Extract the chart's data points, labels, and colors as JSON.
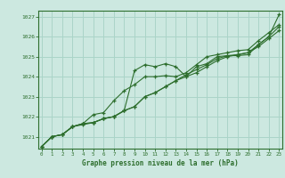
{
  "title": "Graphe pression niveau de la mer (hPa)",
  "bg_color": "#cce8e0",
  "grid_color": "#aad4c8",
  "line_color": "#2d6e2d",
  "xlim": [
    -0.3,
    23.3
  ],
  "ylim": [
    1020.4,
    1027.3
  ],
  "yticks": [
    1021,
    1022,
    1023,
    1024,
    1025,
    1026,
    1027
  ],
  "xticks": [
    0,
    1,
    2,
    3,
    4,
    5,
    6,
    7,
    8,
    9,
    10,
    11,
    12,
    13,
    14,
    15,
    16,
    17,
    18,
    19,
    20,
    21,
    22,
    23
  ],
  "series": [
    [
      1020.5,
      1021.0,
      1021.1,
      1021.5,
      1021.6,
      1021.7,
      1021.9,
      1022.0,
      1022.3,
      1024.3,
      1024.6,
      1024.5,
      1024.65,
      1024.5,
      1024.0,
      1024.5,
      1024.65,
      1025.0,
      1025.05,
      1025.05,
      1025.1,
      1025.6,
      1026.0,
      1027.1
    ],
    [
      1020.5,
      1021.0,
      1021.1,
      1021.5,
      1021.65,
      1022.1,
      1022.2,
      1022.8,
      1023.3,
      1023.6,
      1024.0,
      1024.0,
      1024.05,
      1024.0,
      1024.2,
      1024.6,
      1025.0,
      1025.1,
      1025.2,
      1025.3,
      1025.35,
      1025.8,
      1026.2,
      1026.6
    ],
    [
      1020.5,
      1021.0,
      1021.1,
      1021.5,
      1021.65,
      1021.7,
      1021.9,
      1022.0,
      1022.3,
      1022.5,
      1023.0,
      1023.2,
      1023.5,
      1023.8,
      1024.1,
      1024.35,
      1024.6,
      1024.9,
      1025.05,
      1025.1,
      1025.2,
      1025.6,
      1026.0,
      1026.5
    ],
    [
      1020.5,
      1021.0,
      1021.1,
      1021.5,
      1021.65,
      1021.7,
      1021.9,
      1022.0,
      1022.3,
      1022.5,
      1023.0,
      1023.2,
      1023.5,
      1023.8,
      1024.0,
      1024.2,
      1024.5,
      1024.8,
      1025.0,
      1025.1,
      1025.2,
      1025.5,
      1025.9,
      1026.3
    ]
  ]
}
